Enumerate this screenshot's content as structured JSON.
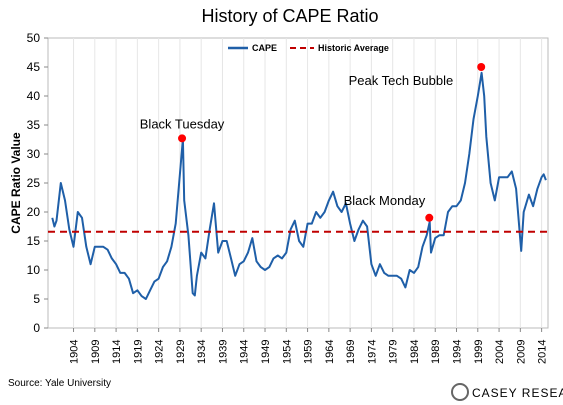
{
  "chart_data": {
    "type": "line",
    "title": "History of CAPE Ratio",
    "ylabel": "CAPE Ratio Value",
    "x": [
      1899,
      1899.5,
      1900,
      1901,
      1902,
      1903,
      1904,
      1905,
      1906,
      1907,
      1908,
      1909,
      1910,
      1911,
      1912,
      1913,
      1914,
      1915,
      1916,
      1917,
      1918,
      1919,
      1920,
      1921,
      1922,
      1923,
      1924,
      1925,
      1926,
      1927,
      1928,
      1929.7,
      1930,
      1931,
      1932,
      1932.5,
      1933,
      1934,
      1935,
      1936,
      1937,
      1938,
      1939,
      1940,
      1941,
      1942,
      1943,
      1944,
      1945,
      1946,
      1947,
      1948,
      1949,
      1950,
      1951,
      1952,
      1953,
      1954,
      1955,
      1956,
      1957,
      1958,
      1959,
      1960,
      1961,
      1962,
      1963,
      1964,
      1965,
      1966,
      1967,
      1968,
      1969,
      1970,
      1971,
      1972,
      1973,
      1974,
      1975,
      1976,
      1977,
      1978,
      1979,
      1980,
      1981,
      1982,
      1983,
      1984,
      1985,
      1986,
      1987,
      1987.7,
      1988,
      1989,
      1990,
      1991,
      1992,
      1993,
      1994,
      1995,
      1996,
      1997,
      1998,
      1999,
      1999.9,
      2000.5,
      2001,
      2002,
      2003,
      2004,
      2005,
      2006,
      2007,
      2008,
      2009.2,
      2009.8,
      2010,
      2011,
      2012,
      2013,
      2014,
      2014.5,
      2015
    ],
    "series": [
      {
        "name": "CAPE",
        "color": "#1f5fa8",
        "values": [
          19,
          17.5,
          18.5,
          25,
          22,
          17,
          14,
          20,
          19,
          14,
          11,
          14,
          14,
          14,
          13.5,
          12,
          11,
          9.5,
          9.5,
          8.5,
          6,
          6.5,
          5.5,
          5,
          6.5,
          8,
          8.5,
          10.5,
          11.5,
          14,
          18,
          32.6,
          22,
          16,
          6,
          5.6,
          9,
          13,
          12,
          17,
          21.5,
          13,
          15,
          15,
          12,
          9,
          11,
          11.5,
          13,
          15.5,
          11.5,
          10.5,
          10,
          10.5,
          12,
          12.5,
          12,
          13,
          17,
          18.5,
          15,
          14,
          18,
          18,
          20,
          19,
          20,
          22,
          23.5,
          21,
          20,
          21.5,
          18,
          15,
          17,
          18.5,
          17.5,
          11,
          9,
          11,
          9.5,
          9,
          9,
          9,
          8.5,
          7,
          10,
          9.5,
          10.5,
          14,
          16,
          18.3,
          13,
          15.5,
          16,
          16,
          20,
          21,
          21,
          22,
          25,
          30,
          36,
          40,
          44,
          40,
          33,
          25,
          22,
          26,
          26,
          26,
          27,
          24,
          13.3,
          20,
          20.5,
          23,
          21,
          24,
          26,
          26.5,
          25.5
        ]
      }
    ],
    "reference_line": {
      "name": "Historic Average",
      "value": 16.6,
      "color": "#c00000"
    },
    "annotations": [
      {
        "label": "Black Tuesday",
        "x": 1929.5,
        "y": 32.7
      },
      {
        "label": "Peak Tech Bubble",
        "x": 1999.8,
        "y": 45
      },
      {
        "label": "Black Monday",
        "x": 1987.6,
        "y": 19
      }
    ],
    "xlim": [
      1898,
      2015.5
    ],
    "ylim": [
      0,
      50
    ],
    "xticks": [
      1904,
      1909,
      1914,
      1919,
      1924,
      1929,
      1934,
      1939,
      1944,
      1949,
      1954,
      1959,
      1964,
      1969,
      1974,
      1979,
      1984,
      1989,
      1994,
      1999,
      2004,
      2009,
      2014
    ],
    "yticks": [
      0,
      5,
      10,
      15,
      20,
      25,
      30,
      35,
      40,
      45,
      50
    ],
    "grid": true,
    "source": "Source: Yale University",
    "logo": "CASEY RESEARCH"
  }
}
